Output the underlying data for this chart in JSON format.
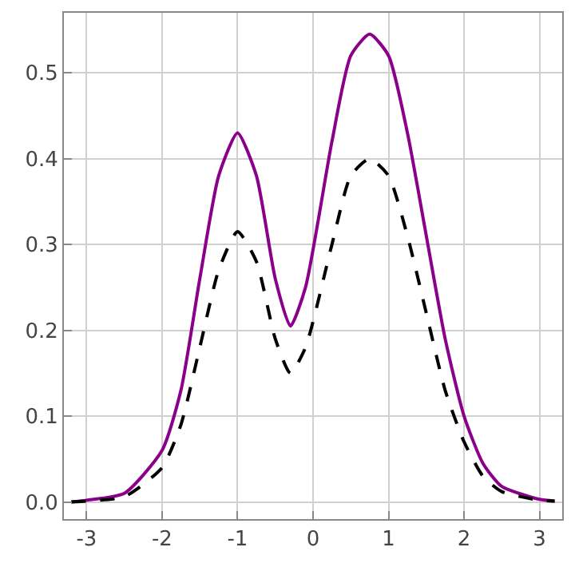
{
  "chart_data": {
    "type": "line",
    "xlim": [
      -3.3,
      3.3
    ],
    "ylim": [
      -0.02,
      0.57
    ],
    "xticks": [
      -3,
      -2,
      -1,
      0,
      1,
      2,
      3
    ],
    "yticks": [
      {
        "value": 0,
        "label": "0.0"
      },
      0.1,
      0.2,
      0.3,
      0.4,
      0.5
    ],
    "grid": true,
    "marker": "none",
    "x": [
      -3.2,
      -3,
      -2.5,
      -2,
      -1.75,
      -1.5,
      -1.25,
      -1,
      -0.75,
      -0.5,
      -0.3,
      -0.1,
      0.25,
      0.5,
      0.75,
      1,
      1.25,
      1.5,
      1.75,
      2,
      2.25,
      2.5,
      3,
      3.2
    ],
    "series": [
      {
        "color": "#8b008b",
        "line_style": "solid",
        "values": [
          0.0,
          0.002,
          0.01,
          0.06,
          0.13,
          0.26,
          0.38,
          0.43,
          0.38,
          0.26,
          0.205,
          0.25,
          0.42,
          0.52,
          0.545,
          0.52,
          0.43,
          0.31,
          0.19,
          0.1,
          0.045,
          0.018,
          0.003,
          0.001
        ]
      },
      {
        "color": "#000000",
        "line_style": "dashed",
        "values": [
          0.0,
          0.001,
          0.006,
          0.04,
          0.09,
          0.18,
          0.27,
          0.315,
          0.28,
          0.19,
          0.15,
          0.18,
          0.3,
          0.38,
          0.4,
          0.38,
          0.31,
          0.22,
          0.13,
          0.07,
          0.03,
          0.012,
          0.002,
          0.001
        ]
      }
    ]
  }
}
